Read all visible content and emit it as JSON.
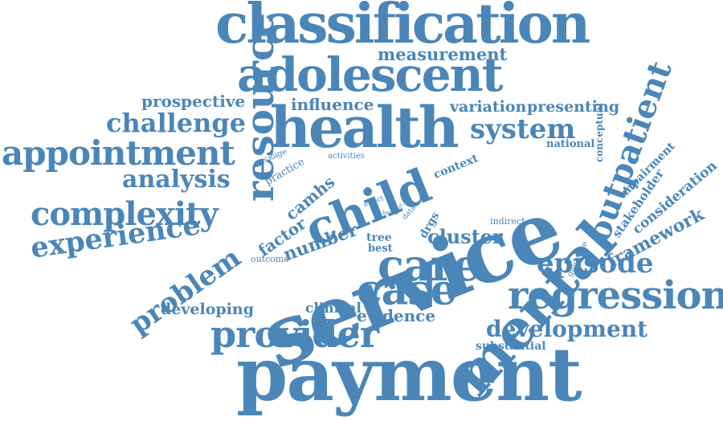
{
  "accent_color": "#4a86b8",
  "words": {
    "classification": "classification",
    "measurement": "measurement",
    "adolescent": "adolescent",
    "prospective": "prospective",
    "influence": "influence",
    "variation": "variation",
    "presenting": "presenting",
    "challenge": "challenge",
    "health": "health",
    "system": "system",
    "appointment": "appointment",
    "resource": "resource",
    "national": "national",
    "conceptual": "conceptual",
    "outpatient": "outpatient",
    "package": "package",
    "practice": "practice",
    "activities": "activities",
    "context": "context",
    "impairment": "impairment",
    "analysis": "analysis",
    "child": "child",
    "service": "service",
    "stakeholder": "stakeholder",
    "consideration": "consideration",
    "camhs": "camhs",
    "effect": "effect",
    "basis": "basis",
    "best_small": "best",
    "data": "data",
    "indirect": "indirect",
    "complexity": "complexity",
    "framework": "framework",
    "factor": "factor",
    "number": "number",
    "drgs": "drgs",
    "mental": "mental",
    "experience": "experience",
    "tree": "tree",
    "cluster": "cluster",
    "best": "best",
    "guideline": "guideline",
    "problem": "problem",
    "outcome": "outcome",
    "care": "care",
    "episode": "episode",
    "case": "case",
    "regression": "regression",
    "developing": "developing",
    "clinical": "clinical",
    "evidence": "evidence",
    "development": "development",
    "provider": "provider",
    "substantial": "substantial",
    "payment": "payment"
  }
}
